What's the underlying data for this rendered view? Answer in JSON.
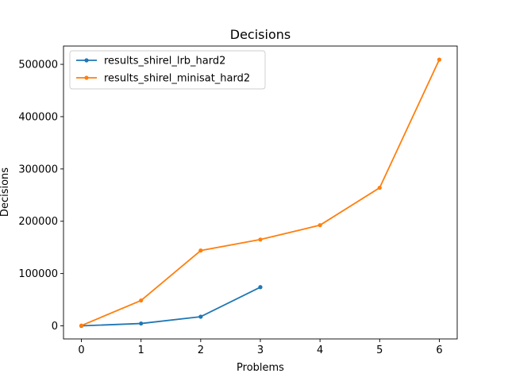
{
  "chart_data": {
    "type": "line",
    "title": "Decisions",
    "xlabel": "Problems",
    "ylabel": "Decisions",
    "xlim": [
      -0.3,
      6.3
    ],
    "ylim": [
      -25000,
      535000
    ],
    "xticks": [
      0,
      1,
      2,
      3,
      4,
      5,
      6
    ],
    "xtick_labels": [
      "0",
      "1",
      "2",
      "3",
      "4",
      "5",
      "6"
    ],
    "yticks": [
      0,
      100000,
      200000,
      300000,
      400000,
      500000
    ],
    "ytick_labels": [
      "0",
      "100000",
      "200000",
      "300000",
      "400000",
      "500000"
    ],
    "grid": false,
    "legend_position": "top-left",
    "series": [
      {
        "name": "results_shirel_lrb_hard2",
        "color": "#1f77b4",
        "x": [
          0,
          1,
          2,
          3
        ],
        "y": [
          0,
          4500,
          17500,
          74000
        ]
      },
      {
        "name": "results_shirel_minisat_hard2",
        "color": "#ff7f0e",
        "x": [
          0,
          1,
          2,
          3,
          4,
          5,
          6
        ],
        "y": [
          500,
          48500,
          144000,
          165000,
          192500,
          264000,
          509000
        ]
      }
    ]
  }
}
